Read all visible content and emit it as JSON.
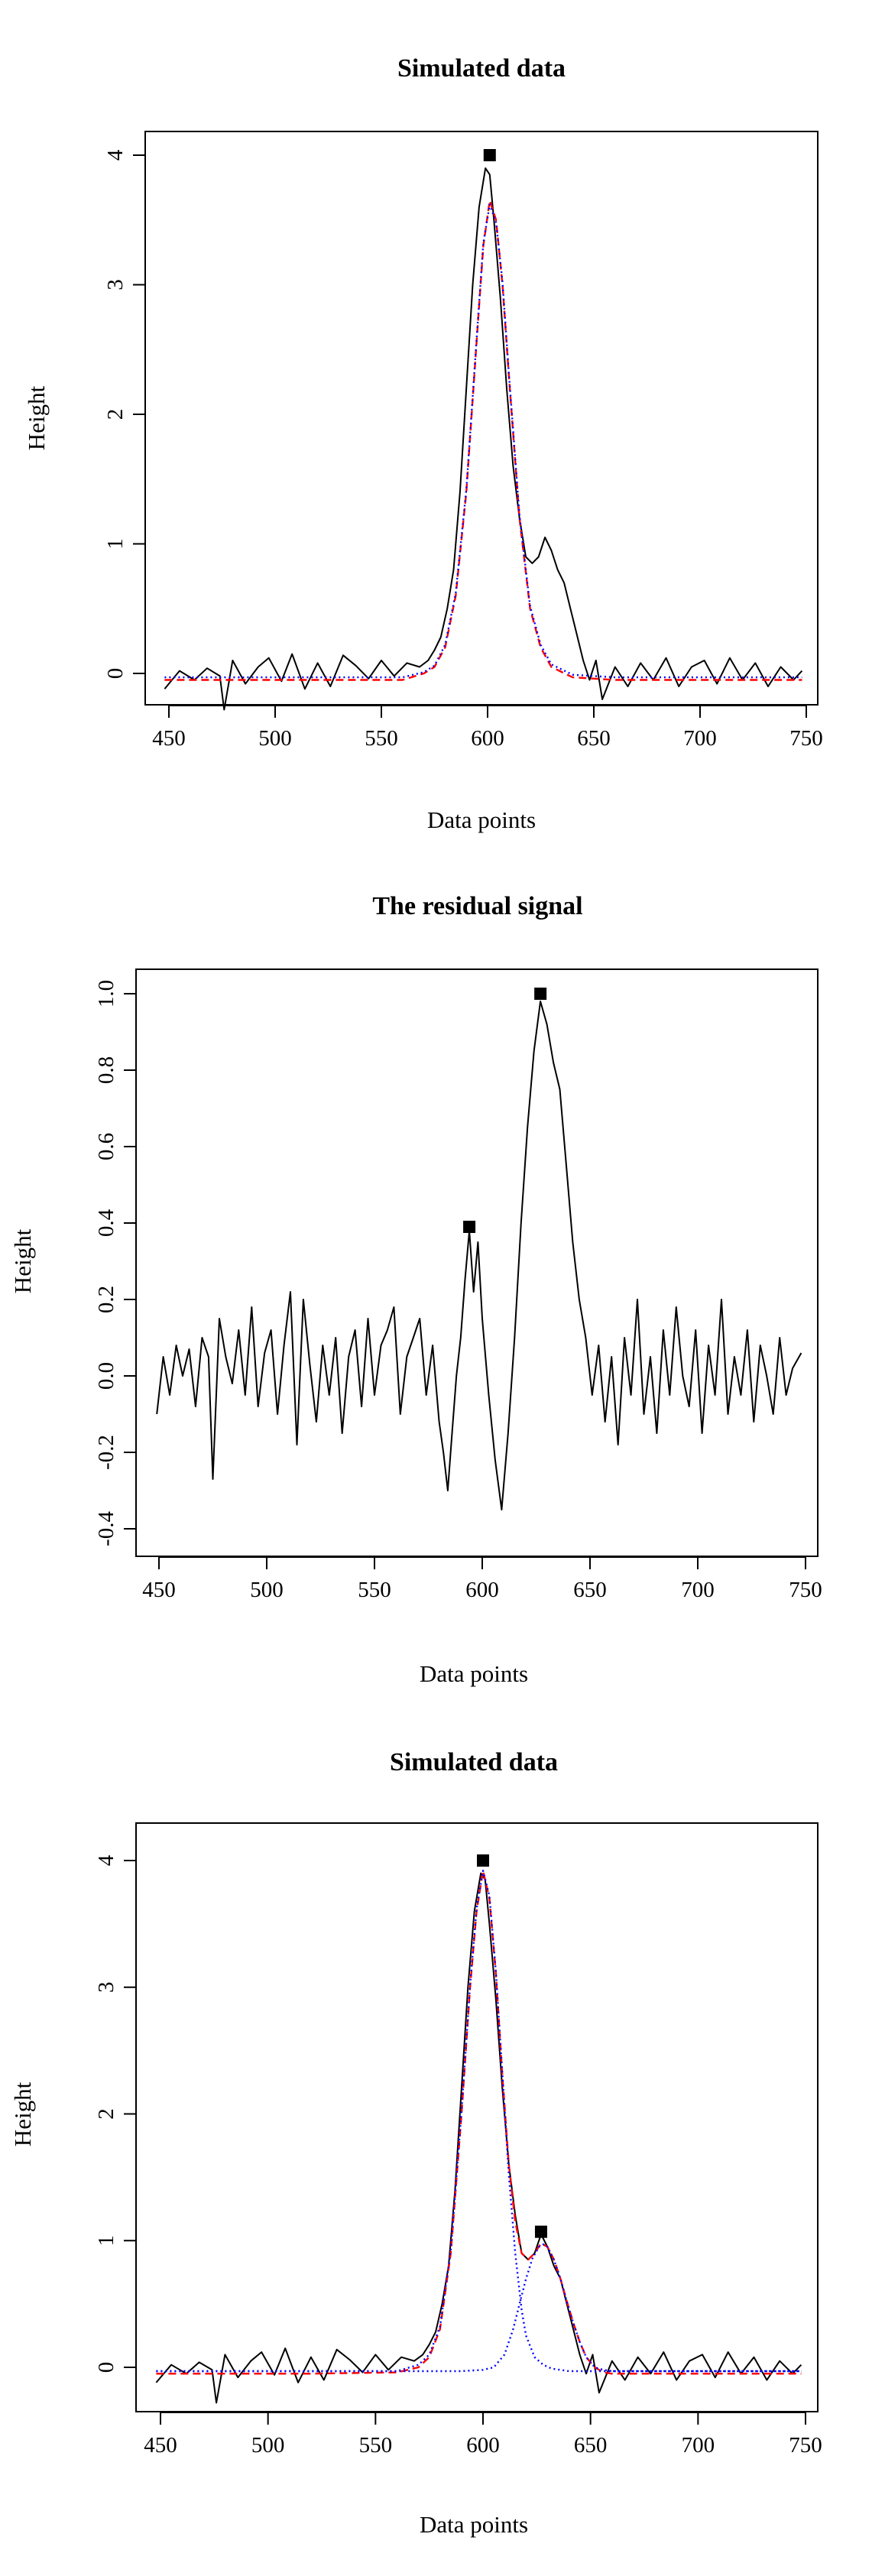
{
  "chart_data": [
    {
      "type": "line",
      "title": "Simulated data",
      "xlabel": "Data points",
      "ylabel": "Height",
      "xlim": [
        450,
        750
      ],
      "ylim": [
        -0.5,
        4.2
      ],
      "xticks": [
        450,
        500,
        550,
        600,
        650,
        700,
        750
      ],
      "yticks": [
        0,
        1,
        2,
        3,
        4
      ],
      "xtick_labels": [
        "450",
        "500",
        "550",
        "600",
        "650",
        "700",
        "750"
      ],
      "ytick_labels": [
        "0",
        "1",
        "2",
        "3",
        "4"
      ],
      "peaks": [
        {
          "x": 601,
          "y": 4.0
        }
      ],
      "series": [
        {
          "style": "solid",
          "color": "#000000",
          "x": [
            448,
            455,
            462,
            468,
            474,
            476,
            480,
            486,
            492,
            497,
            503,
            508,
            514,
            520,
            526,
            532,
            538,
            544,
            550,
            556,
            562,
            568,
            572,
            575,
            578,
            581,
            584,
            587,
            590,
            593,
            596,
            599,
            601,
            603,
            606,
            609,
            612,
            615,
            618,
            621,
            624,
            627,
            630,
            633,
            636,
            639,
            642,
            645,
            648,
            651,
            654,
            660,
            666,
            672,
            678,
            684,
            690,
            696,
            702,
            708,
            714,
            720,
            726,
            732,
            738,
            744,
            748
          ],
          "y": [
            -0.12,
            0.02,
            -0.05,
            0.04,
            -0.02,
            -0.28,
            0.1,
            -0.08,
            0.05,
            0.12,
            -0.06,
            0.15,
            -0.12,
            0.08,
            -0.1,
            0.14,
            0.06,
            -0.04,
            0.1,
            -0.02,
            0.08,
            0.05,
            0.1,
            0.18,
            0.28,
            0.5,
            0.8,
            1.4,
            2.2,
            3.0,
            3.6,
            3.9,
            3.85,
            3.5,
            2.9,
            2.2,
            1.6,
            1.2,
            0.9,
            0.85,
            0.9,
            1.05,
            0.95,
            0.8,
            0.7,
            0.5,
            0.3,
            0.1,
            -0.05,
            0.1,
            -0.2,
            0.05,
            -0.1,
            0.08,
            -0.05,
            0.12,
            -0.1,
            0.05,
            0.1,
            -0.08,
            0.12,
            -0.05,
            0.08,
            -0.1,
            0.05,
            -0.05,
            0.02
          ]
        },
        {
          "style": "dashed",
          "color": "#ff0000",
          "x": [
            448,
            480,
            520,
            560,
            570,
            575,
            580,
            585,
            590,
            595,
            598,
            601,
            604,
            607,
            610,
            615,
            620,
            625,
            630,
            640,
            660,
            700,
            748
          ],
          "y": [
            -0.05,
            -0.05,
            -0.05,
            -0.05,
            0.0,
            0.05,
            0.2,
            0.6,
            1.4,
            2.6,
            3.3,
            3.65,
            3.5,
            3.0,
            2.3,
            1.2,
            0.5,
            0.2,
            0.05,
            -0.03,
            -0.05,
            -0.05,
            -0.05
          ]
        },
        {
          "style": "dotted",
          "color": "#0000ff",
          "x": [
            448,
            480,
            520,
            560,
            570,
            575,
            580,
            585,
            590,
            595,
            598,
            601,
            604,
            607,
            610,
            615,
            620,
            625,
            630,
            640,
            660,
            700,
            748
          ],
          "y": [
            -0.03,
            -0.03,
            -0.03,
            -0.03,
            0.01,
            0.06,
            0.22,
            0.62,
            1.42,
            2.62,
            3.32,
            3.62,
            3.48,
            3.02,
            2.32,
            1.22,
            0.52,
            0.22,
            0.07,
            -0.01,
            -0.03,
            -0.03,
            -0.03
          ]
        }
      ]
    },
    {
      "type": "line",
      "title": "The residual signal",
      "xlabel": "Data points",
      "ylabel": "Height",
      "xlim": [
        450,
        750
      ],
      "ylim": [
        -0.4,
        1.0
      ],
      "xticks": [
        450,
        500,
        550,
        600,
        650,
        700,
        750
      ],
      "yticks": [
        -0.4,
        -0.2,
        0.0,
        0.2,
        0.4,
        0.6,
        0.8,
        1.0
      ],
      "xtick_labels": [
        "450",
        "500",
        "550",
        "600",
        "650",
        "700",
        "750"
      ],
      "ytick_labels": [
        "-0.4",
        "-0.2",
        "0.0",
        "0.2",
        "0.4",
        "0.6",
        "0.8",
        "1.0"
      ],
      "peaks": [
        {
          "x": 594,
          "y": 0.39
        },
        {
          "x": 627,
          "y": 1.0
        }
      ],
      "series": [
        {
          "style": "solid",
          "color": "#000000",
          "x": [
            449,
            452,
            455,
            458,
            461,
            464,
            467,
            470,
            473,
            475,
            478,
            481,
            484,
            487,
            490,
            493,
            496,
            499,
            502,
            505,
            508,
            511,
            514,
            517,
            520,
            523,
            526,
            529,
            532,
            535,
            538,
            541,
            544,
            547,
            550,
            553,
            556,
            559,
            562,
            565,
            568,
            571,
            574,
            577,
            580,
            582,
            584,
            586,
            588,
            590,
            592,
            594,
            596,
            598,
            600,
            603,
            606,
            609,
            612,
            615,
            618,
            621,
            624,
            627,
            630,
            633,
            636,
            639,
            642,
            645,
            648,
            651,
            654,
            657,
            660,
            663,
            666,
            669,
            672,
            675,
            678,
            681,
            684,
            687,
            690,
            693,
            696,
            699,
            702,
            705,
            708,
            711,
            714,
            717,
            720,
            723,
            726,
            729,
            732,
            735,
            738,
            741,
            744,
            748
          ],
          "y": [
            -0.1,
            0.05,
            -0.05,
            0.08,
            0.0,
            0.07,
            -0.08,
            0.1,
            0.05,
            -0.27,
            0.15,
            0.05,
            -0.02,
            0.12,
            -0.05,
            0.18,
            -0.08,
            0.06,
            0.12,
            -0.1,
            0.08,
            0.22,
            -0.18,
            0.2,
            0.03,
            -0.12,
            0.08,
            -0.05,
            0.1,
            -0.15,
            0.05,
            0.12,
            -0.08,
            0.15,
            -0.05,
            0.08,
            0.12,
            0.18,
            -0.1,
            0.05,
            0.1,
            0.15,
            -0.05,
            0.08,
            -0.12,
            -0.2,
            -0.3,
            -0.15,
            0.0,
            0.1,
            0.25,
            0.38,
            0.22,
            0.35,
            0.15,
            -0.05,
            -0.22,
            -0.35,
            -0.15,
            0.1,
            0.4,
            0.65,
            0.85,
            0.98,
            0.92,
            0.82,
            0.75,
            0.55,
            0.35,
            0.2,
            0.1,
            -0.05,
            0.08,
            -0.12,
            0.05,
            -0.18,
            0.1,
            -0.05,
            0.2,
            -0.1,
            0.05,
            -0.15,
            0.12,
            -0.05,
            0.18,
            0.0,
            -0.08,
            0.12,
            -0.15,
            0.08,
            -0.05,
            0.2,
            -0.1,
            0.05,
            -0.05,
            0.12,
            -0.12,
            0.08,
            0.0,
            -0.1,
            0.1,
            -0.05,
            0.02,
            0.06
          ]
        }
      ]
    },
    {
      "type": "line",
      "title": "Simulated data",
      "xlabel": "Data points",
      "ylabel": "Height",
      "xlim": [
        450,
        750
      ],
      "ylim": [
        -0.5,
        4.2
      ],
      "xticks": [
        450,
        500,
        550,
        600,
        650,
        700,
        750
      ],
      "yticks": [
        0,
        1,
        2,
        3,
        4
      ],
      "xtick_labels": [
        "450",
        "500",
        "550",
        "600",
        "650",
        "700",
        "750"
      ],
      "ytick_labels": [
        "0",
        "1",
        "2",
        "3",
        "4"
      ],
      "peaks": [
        {
          "x": 600,
          "y": 4.0
        },
        {
          "x": 627,
          "y": 1.07
        }
      ],
      "series": [
        {
          "style": "solid",
          "color": "#000000",
          "x": [
            448,
            455,
            462,
            468,
            474,
            476,
            480,
            486,
            492,
            497,
            503,
            508,
            514,
            520,
            526,
            532,
            538,
            544,
            550,
            556,
            562,
            568,
            572,
            575,
            578,
            581,
            584,
            587,
            590,
            593,
            596,
            599,
            601,
            603,
            606,
            609,
            612,
            615,
            618,
            621,
            624,
            627,
            630,
            633,
            636,
            639,
            642,
            645,
            648,
            651,
            654,
            660,
            666,
            672,
            678,
            684,
            690,
            696,
            702,
            708,
            714,
            720,
            726,
            732,
            738,
            744,
            748
          ],
          "y": [
            -0.12,
            0.02,
            -0.05,
            0.04,
            -0.02,
            -0.28,
            0.1,
            -0.08,
            0.05,
            0.12,
            -0.06,
            0.15,
            -0.12,
            0.08,
            -0.1,
            0.14,
            0.06,
            -0.04,
            0.1,
            -0.02,
            0.08,
            0.05,
            0.1,
            0.18,
            0.28,
            0.5,
            0.8,
            1.4,
            2.2,
            3.0,
            3.6,
            3.9,
            3.85,
            3.5,
            2.9,
            2.2,
            1.6,
            1.2,
            0.9,
            0.85,
            0.9,
            1.05,
            0.95,
            0.8,
            0.7,
            0.5,
            0.3,
            0.1,
            -0.05,
            0.1,
            -0.2,
            0.05,
            -0.1,
            0.08,
            -0.05,
            0.12,
            -0.1,
            0.05,
            0.1,
            -0.08,
            0.12,
            -0.05,
            0.08,
            -0.1,
            0.05,
            -0.05,
            0.02
          ]
        },
        {
          "style": "dashed",
          "color": "#ff0000",
          "x": [
            448,
            480,
            520,
            560,
            570,
            575,
            580,
            585,
            590,
            594,
            597,
            600,
            603,
            606,
            609,
            612,
            615,
            618,
            621,
            624,
            627,
            630,
            633,
            636,
            639,
            642,
            645,
            648,
            652,
            656,
            660,
            680,
            720,
            748
          ],
          "y": [
            -0.05,
            -0.05,
            -0.05,
            -0.04,
            0.0,
            0.08,
            0.3,
            0.9,
            2.0,
            3.0,
            3.6,
            3.92,
            3.7,
            3.1,
            2.3,
            1.6,
            1.15,
            0.9,
            0.85,
            0.9,
            0.98,
            0.95,
            0.85,
            0.7,
            0.52,
            0.35,
            0.2,
            0.08,
            0.0,
            -0.04,
            -0.05,
            -0.05,
            -0.05,
            -0.05
          ]
        },
        {
          "style": "dotted",
          "color": "#0000ff",
          "x": [
            448,
            480,
            520,
            560,
            570,
            575,
            580,
            585,
            590,
            594,
            597,
            600,
            603,
            606,
            609,
            612,
            615,
            618,
            620,
            624,
            628,
            632,
            640,
            660,
            700,
            748
          ],
          "y": [
            -0.03,
            -0.03,
            -0.03,
            -0.03,
            0.02,
            0.1,
            0.32,
            0.92,
            2.02,
            3.02,
            3.62,
            3.92,
            3.72,
            3.12,
            2.32,
            1.52,
            0.9,
            0.45,
            0.25,
            0.08,
            0.02,
            -0.01,
            -0.03,
            -0.03,
            -0.03,
            -0.03
          ]
        },
        {
          "style": "dotted",
          "color": "#0000ff",
          "x": [
            448,
            560,
            590,
            600,
            605,
            610,
            614,
            617,
            620,
            623,
            626,
            628,
            630,
            633,
            636,
            639,
            642,
            645,
            648,
            652,
            656,
            660,
            680,
            748
          ],
          "y": [
            -0.03,
            -0.03,
            -0.03,
            -0.02,
            0.0,
            0.1,
            0.3,
            0.5,
            0.7,
            0.86,
            0.95,
            0.97,
            0.95,
            0.85,
            0.7,
            0.52,
            0.35,
            0.2,
            0.08,
            0.0,
            -0.02,
            -0.03,
            -0.03,
            -0.03
          ]
        }
      ]
    }
  ]
}
